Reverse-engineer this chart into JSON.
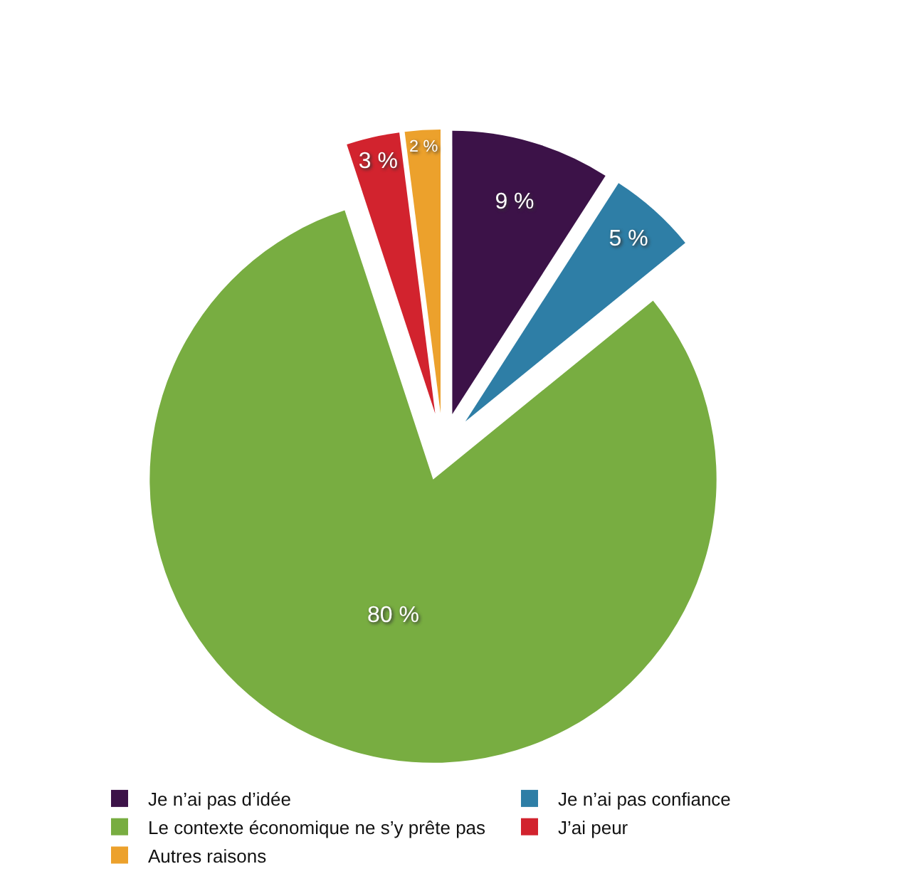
{
  "chart_data": {
    "type": "pie",
    "categories": [
      "Je n’ai pas d’idée",
      "Je n’ai pas confiance",
      "Le contexte économique ne s’y prête pas",
      "J’ai peur",
      "Autres raisons"
    ],
    "values": [
      9,
      5,
      80,
      3,
      2
    ],
    "colors": [
      "#3c1248",
      "#2e7ea6",
      "#78ad41",
      "#d2232e",
      "#eca12c"
    ],
    "value_labels": [
      "9 %",
      "5 %",
      "80 %",
      "3 %",
      "2 %"
    ],
    "legend": "bottom"
  }
}
